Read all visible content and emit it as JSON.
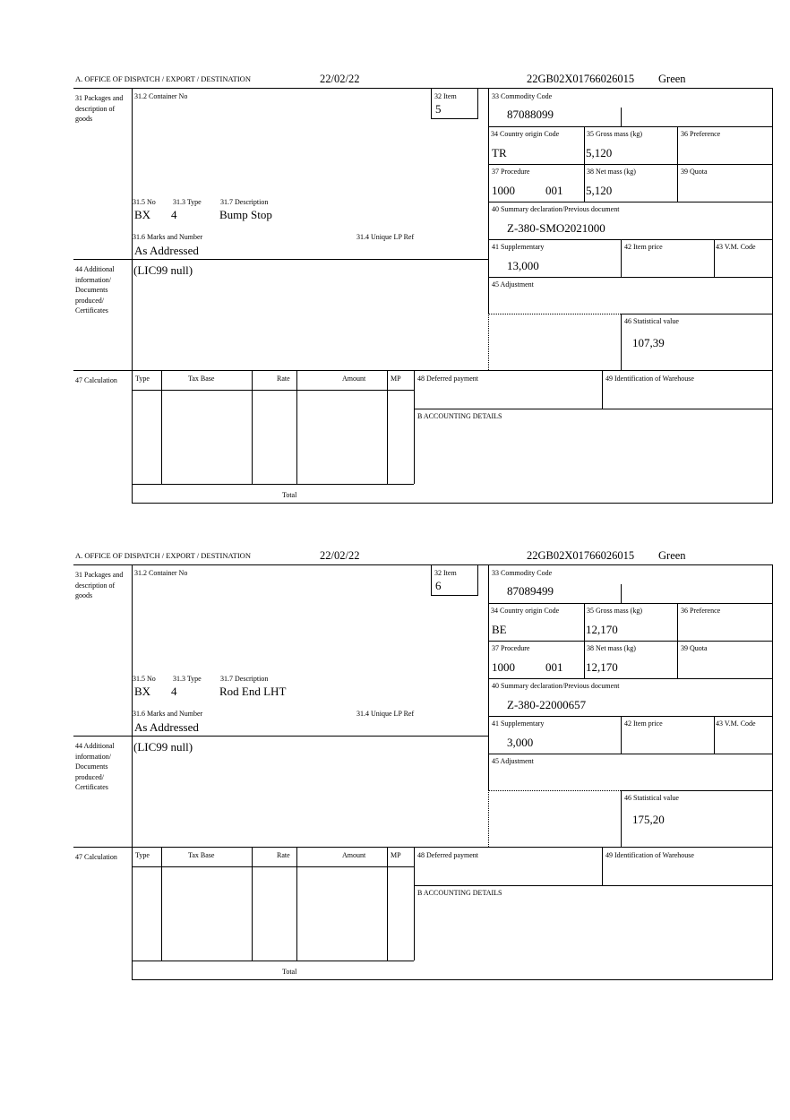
{
  "labels": {
    "office": "A.  OFFICE OF DISPATCH / EXPORT / DESTINATION",
    "box31": "31 Packages and description of goods",
    "box31_2": "31.2 Container No",
    "box32": "32 Item",
    "box33": "33 Commodity Code",
    "box34": "34 Country origin Code",
    "box35": "35 Gross mass (kg)",
    "box36": "36 Preference",
    "box37": "37 Procedure",
    "box38": "38 Net mass (kg)",
    "box39": "39 Quota",
    "box40": "40 Summary declaration/Previous document",
    "box41": "41 Supplementary",
    "box42": "42 Item price",
    "box43": "43 V.M. Code",
    "box44": "44 Additional information/ Documents produced/ Certificates",
    "box45": "45 Adjustment",
    "box46": "46 Statistical value",
    "box47": "47 Calculation",
    "box48": "48 Deferred payment",
    "box49": "49 Identification of Warehouse",
    "box31_5": "31.5 No",
    "box31_3": "31.3 Type",
    "box31_7": "31.7 Description",
    "box31_6": "31.6 Marks and Number",
    "box31_4": "31.4 Unique LP Ref",
    "calc_type": "Type",
    "calc_tax_base": "Tax Base",
    "calc_rate": "Rate",
    "calc_amount": "Amount",
    "calc_mp": "MP",
    "calc_total": "Total",
    "accounting": "B ACCOUNTING DETAILS"
  },
  "items": [
    {
      "date": "22/02/22",
      "reference": "22GB02X01766026015",
      "route": "Green",
      "item_no": "5",
      "commodity_code": "87088099",
      "country_origin": "TR",
      "gross_mass": "5,120",
      "procedure": "1000",
      "procedure_suffix": "001",
      "net_mass": "5,120",
      "previous_document": "Z-380-SMO2021000",
      "supplementary": "13,000",
      "statistical_value": "107,39",
      "package_kind": "BX",
      "package_count": "4",
      "description": "Bump Stop",
      "marks": "As Addressed",
      "additional_info": "(LIC99 null)"
    },
    {
      "date": "22/02/22",
      "reference": "22GB02X01766026015",
      "route": "Green",
      "item_no": "6",
      "commodity_code": "87089499",
      "country_origin": "BE",
      "gross_mass": "12,170",
      "procedure": "1000",
      "procedure_suffix": "001",
      "net_mass": "12,170",
      "previous_document": "Z-380-22000657",
      "supplementary": "3,000",
      "statistical_value": "175,20",
      "package_kind": "BX",
      "package_count": "4",
      "description": "Rod End LHT",
      "marks": "As Addressed",
      "additional_info": "(LIC99 null)"
    }
  ]
}
